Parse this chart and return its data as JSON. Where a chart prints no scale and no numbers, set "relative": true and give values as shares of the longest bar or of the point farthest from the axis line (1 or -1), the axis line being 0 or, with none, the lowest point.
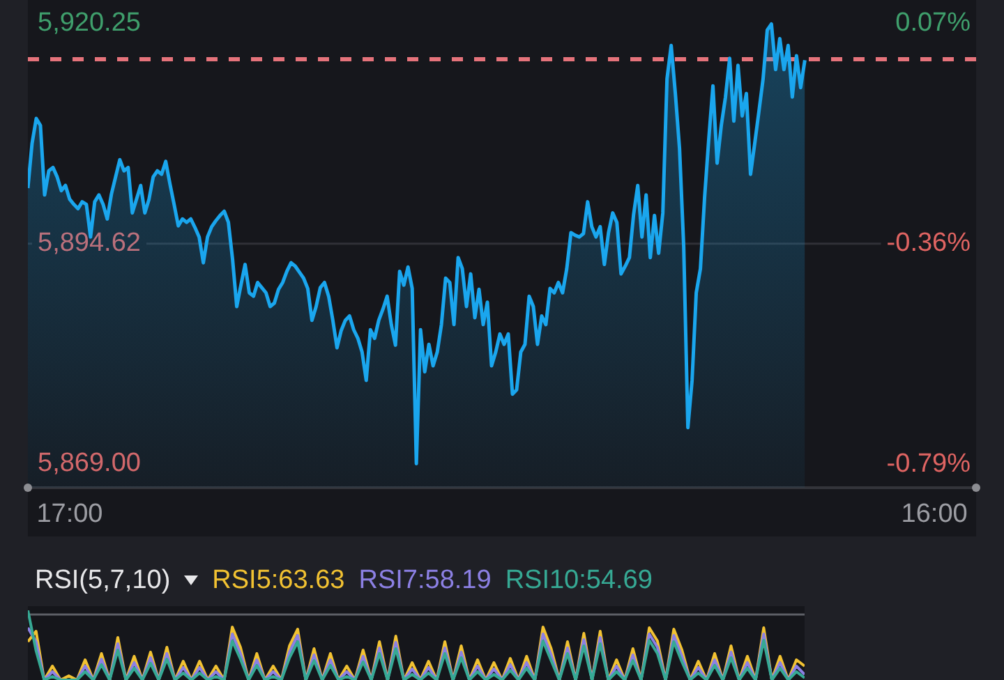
{
  "chart_data": [
    {
      "type": "area",
      "categories": [
        null,
        null,
        null,
        null,
        null,
        null,
        null,
        null,
        null,
        null,
        "17:00",
        null,
        null,
        null,
        null,
        null,
        null,
        null,
        null,
        null,
        null,
        null,
        null,
        null,
        null,
        null,
        null,
        null,
        null,
        null,
        null,
        null,
        null,
        null,
        null,
        null,
        null,
        null,
        null,
        null,
        null,
        null,
        null,
        null,
        null,
        null,
        null,
        null,
        null,
        null,
        null,
        null,
        null,
        null,
        null,
        null,
        null,
        null,
        null,
        null,
        null,
        null,
        null,
        null,
        null,
        null,
        null,
        null,
        null,
        null,
        null,
        null,
        null,
        null,
        null,
        null,
        null,
        null,
        null,
        null,
        null,
        null,
        null,
        null,
        null,
        null,
        null,
        null,
        null,
        null,
        null,
        null,
        null,
        null,
        null,
        null,
        null,
        null,
        null,
        null,
        null,
        null,
        null,
        null,
        null,
        null,
        null,
        null,
        null,
        null,
        null,
        null,
        null,
        null,
        null,
        null,
        null,
        null,
        null,
        null,
        null,
        null,
        null,
        null,
        null,
        null,
        null,
        null,
        null,
        null,
        null,
        null,
        null,
        null,
        null,
        null,
        null,
        null,
        null,
        null,
        null,
        null,
        null,
        null,
        null,
        null,
        null,
        null,
        null,
        null,
        null,
        null,
        null,
        null,
        null,
        null,
        null,
        null,
        null,
        null,
        null,
        null,
        null,
        null,
        null,
        null,
        null,
        null,
        null,
        null,
        null,
        null,
        null,
        null,
        null,
        null,
        null,
        null,
        null,
        null,
        null,
        null,
        null,
        null,
        null,
        null,
        null,
        null,
        null,
        null,
        null,
        null,
        null,
        null,
        null,
        null,
        null,
        null,
        null,
        null,
        null,
        null,
        null,
        null,
        null,
        null,
        null,
        null,
        null,
        null,
        null,
        null,
        null,
        null,
        null,
        null,
        null,
        "16:00",
        null,
        null,
        null,
        null,
        null,
        null,
        null,
        null,
        null,
        null
      ],
      "series": [
        {
          "color": "#1aa6ee",
          "values": [
            5901.1,
            5906.3,
            5909.2,
            5908.4,
            5900.3,
            5903.1,
            5903.5,
            5902.4,
            5900.8,
            5901.4,
            5899.8,
            5899.2,
            5898.7,
            5899.5,
            5899.2,
            5895.4,
            5899.5,
            5900.3,
            5899.2,
            5897.5,
            5900.4,
            5902.4,
            5904.4,
            5903.1,
            5903.5,
            5898.2,
            5899.8,
            5901.4,
            5898.2,
            5899.8,
            5902.4,
            5903.1,
            5902.7,
            5904.2,
            5901.6,
            5899.2,
            5896.7,
            5897.5,
            5897.1,
            5897.5,
            5896.5,
            5895.4,
            5892.4,
            5895.4,
            5896.6,
            5897.3,
            5897.9,
            5898.4,
            5897.1,
            5892.8,
            5887.3,
            5889.8,
            5892.2,
            5888.9,
            5888.5,
            5890.1,
            5889.5,
            5888.9,
            5887.3,
            5887.7,
            5889.3,
            5890.1,
            5891.4,
            5892.4,
            5892.0,
            5891.3,
            5890.6,
            5889.4,
            5885.7,
            5887.3,
            5889.5,
            5890.1,
            5888.5,
            5885.7,
            5882.5,
            5884.5,
            5885.7,
            5886.2,
            5884.6,
            5883.6,
            5882.0,
            5878.7,
            5884.6,
            5883.6,
            5885.7,
            5887.0,
            5888.5,
            5885.2,
            5882.8,
            5891.4,
            5889.8,
            5891.9,
            5889.4,
            5869.0,
            5884.6,
            5879.7,
            5882.9,
            5880.4,
            5882.0,
            5885.2,
            5890.6,
            5890.1,
            5885.2,
            5893.0,
            5891.7,
            5887.3,
            5891.1,
            5886.0,
            5889.3,
            5885.2,
            5887.8,
            5880.4,
            5882.0,
            5884.1,
            5882.9,
            5884.1,
            5877.1,
            5877.6,
            5882.0,
            5882.9,
            5888.5,
            5887.3,
            5882.9,
            5886.2,
            5885.2,
            5889.4,
            5888.9,
            5890.1,
            5888.9,
            5891.7,
            5895.9,
            5895.6,
            5895.4,
            5895.8,
            5899.5,
            5896.6,
            5895.4,
            5896.6,
            5892.2,
            5895.9,
            5898.2,
            5897.1,
            5891.1,
            5892.0,
            5893.0,
            5898.0,
            5901.4,
            5895.4,
            5900.3,
            5893.0,
            5897.9,
            5893.5,
            5898.2,
            5913.8,
            5917.7,
            5912.1,
            5905.7,
            5894.3,
            5873.2,
            5878.7,
            5888.9,
            5891.7,
            5900.0,
            5906.8,
            5913.0,
            5904.0,
            5908.4,
            5911.7,
            5916.2,
            5908.9,
            5915.4,
            5909.5,
            5912.1,
            5902.7,
            5906.3,
            5910.0,
            5913.8,
            5919.5,
            5920.2,
            5914.9,
            5918.5,
            5914.9,
            5917.7,
            5911.7,
            5916.5,
            5912.8,
            5916.0,
            null,
            null,
            null,
            null,
            null,
            null,
            null,
            null,
            null,
            null,
            null,
            null,
            null,
            null,
            null,
            null,
            null,
            null,
            null,
            null,
            null,
            null,
            null,
            null,
            null,
            null,
            null,
            null,
            null,
            null,
            null,
            null,
            null,
            null,
            null,
            null,
            null,
            null,
            null,
            null,
            null
          ]
        }
      ],
      "ylim": [
        5866.2,
        5923.0
      ],
      "yticks": [
        {
          "value": 5920.25,
          "label": "5,920.25"
        },
        {
          "value": 5894.62,
          "label": "5,894.62"
        },
        {
          "value": 5869,
          "label": "5,869.00"
        }
      ],
      "y2lim": [
        -0.836,
        0.116
      ],
      "y2ticks": [
        {
          "value": 0.07,
          "label": "0.07%"
        },
        {
          "value": -0.36,
          "label": "-0.36%"
        },
        {
          "value": -0.79,
          "label": "-0.79%"
        }
      ],
      "ref_lines": [
        {
          "axis": "y",
          "value": 5916.1,
          "color": "#e5737b",
          "line_style": "dashed"
        },
        {
          "axis": "y",
          "value": 5894.62,
          "color": "#303137"
        }
      ]
    },
    {
      "type": "line",
      "title": "RSI(5,7,10)",
      "legend": "top left",
      "relative": true,
      "tick_labels": false,
      "categories": [
        null,
        null,
        null,
        null,
        null,
        null,
        null,
        null,
        null,
        null,
        null,
        null,
        null,
        null,
        null,
        null,
        null,
        null,
        null,
        null,
        null,
        null,
        null,
        null,
        null,
        null,
        null,
        null,
        null,
        null,
        null,
        null,
        null,
        null,
        null,
        null,
        null,
        null,
        null,
        null,
        null,
        null,
        null,
        null,
        null,
        null,
        null,
        null,
        null,
        null,
        null,
        null,
        null,
        null,
        null,
        null,
        null,
        null,
        null,
        null,
        null,
        null,
        null,
        null,
        null,
        null,
        null,
        null,
        null,
        null,
        null,
        null,
        null,
        null,
        null,
        null,
        null,
        null,
        null,
        null,
        null,
        null,
        null,
        null,
        null,
        null,
        null,
        null,
        null,
        null,
        null,
        null,
        null,
        null,
        null,
        null
      ],
      "series": [
        {
          "name": "RSI5:63.63",
          "color": "#f2c232",
          "values": [
            0.55,
            0.7,
            0,
            0.2,
            0,
            0.06,
            0,
            0.29,
            0,
            0.38,
            0,
            0.61,
            0,
            0.34,
            0,
            0.4,
            0,
            0.47,
            0,
            0.27,
            0,
            0.27,
            0,
            0.2,
            0,
            0.76,
            0.47,
            0,
            0.38,
            0,
            0.2,
            0,
            0.49,
            0.73,
            0,
            0.45,
            0,
            0.38,
            0,
            0.2,
            0,
            0.43,
            0,
            0.55,
            0,
            0.63,
            0,
            0.25,
            0,
            0.27,
            0,
            0.55,
            0,
            0.49,
            0,
            0.29,
            0,
            0.25,
            0,
            0.31,
            0,
            0.34,
            0,
            0.76,
            0.45,
            0,
            0.55,
            0,
            0.67,
            0,
            0.7,
            0,
            0.29,
            0,
            0.45,
            0,
            0.75,
            0.56,
            0,
            0.73,
            0.43,
            0,
            0.27,
            0,
            0.38,
            0,
            0.49,
            0,
            0.34,
            0,
            0.75,
            0,
            0.34,
            0,
            0.29,
            0.2
          ]
        },
        {
          "name": "RSI7:58.19",
          "color": "#8c80e4",
          "values": [
            0.75,
            0.55,
            0,
            0.12,
            0,
            0,
            0,
            0.2,
            0,
            0.3,
            0,
            0.52,
            0,
            0.25,
            0,
            0.32,
            0,
            0.38,
            0,
            0.18,
            0,
            0.18,
            0,
            0.12,
            0,
            0.66,
            0.38,
            0,
            0.29,
            0,
            0.12,
            0,
            0.4,
            0.64,
            0,
            0.36,
            0,
            0.29,
            0,
            0.12,
            0,
            0.34,
            0,
            0.46,
            0,
            0.54,
            0,
            0.16,
            0,
            0.18,
            0,
            0.46,
            0,
            0.4,
            0,
            0.2,
            0,
            0.16,
            0,
            0.22,
            0,
            0.25,
            0,
            0.66,
            0.36,
            0,
            0.46,
            0,
            0.58,
            0,
            0.61,
            0,
            0.2,
            0,
            0.36,
            0,
            0.66,
            0.47,
            0,
            0.64,
            0.34,
            0,
            0.18,
            0,
            0.29,
            0,
            0.4,
            0,
            0.25,
            0,
            0.66,
            0,
            0.25,
            0,
            0.2,
            0.08
          ]
        },
        {
          "name": "RSI10:54.69",
          "color": "#36a994",
          "values": [
            1.0,
            0.42,
            0,
            0.05,
            0,
            0,
            0,
            0.12,
            0,
            0.22,
            0,
            0.43,
            0,
            0.17,
            0,
            0.24,
            0,
            0.3,
            0,
            0.1,
            0,
            0.1,
            0,
            0.05,
            0,
            0.56,
            0.3,
            0,
            0.21,
            0,
            0.05,
            0,
            0.32,
            0.55,
            0,
            0.28,
            0,
            0.21,
            0,
            0.05,
            0,
            0.26,
            0,
            0.38,
            0,
            0.45,
            0,
            0.08,
            0,
            0.1,
            0,
            0.38,
            0,
            0.32,
            0,
            0.12,
            0,
            0.08,
            0,
            0.14,
            0,
            0.17,
            0,
            0.56,
            0.28,
            0,
            0.38,
            0,
            0.49,
            0,
            0.52,
            0,
            0.12,
            0,
            0.28,
            0,
            0.57,
            0.38,
            0,
            0.55,
            0.26,
            0,
            0.1,
            0,
            0.21,
            0,
            0.32,
            0,
            0.17,
            0,
            0.57,
            0,
            0.17,
            0,
            0.12,
            0.03
          ]
        }
      ],
      "ref_lines": [
        {
          "axis": "y",
          "value": 0.94,
          "color": "#5d5f66"
        }
      ]
    }
  ]
}
